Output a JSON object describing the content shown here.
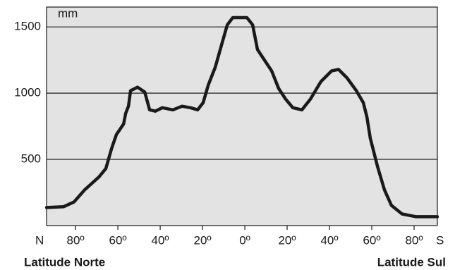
{
  "chart_data": {
    "type": "line",
    "y_label": "mm",
    "north_label": "N",
    "south_label": "S",
    "x_title_left": "Latitude Norte",
    "x_title_right": "Latitude Sul",
    "x": [
      -93.7,
      -85.7,
      -80.7,
      -75.7,
      -69,
      -65.7,
      -63,
      -60.7,
      -57.3,
      -56.3,
      -55,
      -54,
      -50.7,
      -47.3,
      -45,
      -42.3,
      -39,
      -34,
      -29.7,
      -25.7,
      -22.3,
      -19.7,
      -17.3,
      -14,
      -10.7,
      -8.3,
      -5.7,
      1,
      3.7,
      6,
      9.3,
      12.7,
      16,
      19.3,
      22.7,
      27,
      31,
      36,
      41,
      44.3,
      48.3,
      52.7,
      56,
      57.7,
      59.3,
      61,
      62.7,
      66,
      69.3,
      74.3,
      81,
      91
    ],
    "values": [
      136,
      142,
      179,
      270,
      366,
      430,
      580,
      687,
      767,
      848,
      901,
      1019,
      1045,
      1008,
      874,
      864,
      890,
      874,
      901,
      890,
      874,
      928,
      1061,
      1195,
      1382,
      1516,
      1570,
      1570,
      1516,
      1329,
      1249,
      1168,
      1035,
      955,
      890,
      874,
      955,
      1088,
      1168,
      1179,
      1115,
      1019,
      928,
      821,
      660,
      554,
      447,
      270,
      152,
      88,
      67,
      67
    ],
    "color": "#1a1a1a",
    "xlim": [
      -93.7,
      91
    ],
    "xticks": [
      {
        "value": -80,
        "label": "80º"
      },
      {
        "value": -60,
        "label": "60º"
      },
      {
        "value": -40,
        "label": "40º"
      },
      {
        "value": -20,
        "label": "20º"
      },
      {
        "value": 0,
        "label": "0º"
      },
      {
        "value": 20,
        "label": "20º"
      },
      {
        "value": 40,
        "label": "40º"
      },
      {
        "value": 60,
        "label": "60º"
      },
      {
        "value": 80,
        "label": "80º"
      }
    ],
    "ylim": [
      0,
      1650
    ],
    "yticks": [
      500,
      1000,
      1500
    ],
    "grid": true
  }
}
